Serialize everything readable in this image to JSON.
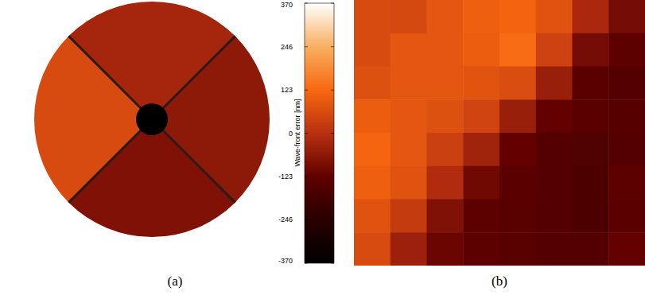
{
  "chart_data": [
    {
      "type": "heatmap",
      "label": "(a)",
      "sector_values": [
        -25,
        -60,
        -80,
        60
      ],
      "colorbar": {
        "label": "Wave-front error [nm]",
        "range": [
          -370,
          370
        ],
        "ticks": [
          -370,
          -246,
          -123,
          0,
          123,
          246,
          370
        ]
      }
    },
    {
      "type": "heatmap",
      "label": "(b)",
      "tick_labels": false,
      "colorbar": {
        "range": [
          -370,
          370
        ]
      },
      "cells": [
        [
          60,
          55,
          85,
          105,
          115,
          75,
          -20,
          -95
        ],
        [
          60,
          85,
          85,
          100,
          130,
          40,
          -95,
          -130
        ],
        [
          70,
          85,
          85,
          80,
          65,
          -45,
          -135,
          -150
        ],
        [
          100,
          85,
          70,
          45,
          -45,
          -120,
          -135,
          -145
        ],
        [
          118,
          85,
          35,
          -35,
          -120,
          -150,
          -160,
          -150
        ],
        [
          105,
          75,
          -10,
          -100,
          -135,
          -150,
          -165,
          -130
        ],
        [
          75,
          25,
          -80,
          -130,
          -140,
          -150,
          -165,
          -135
        ],
        [
          60,
          -40,
          -110,
          -130,
          -140,
          -150,
          -150,
          -120
        ]
      ]
    }
  ]
}
